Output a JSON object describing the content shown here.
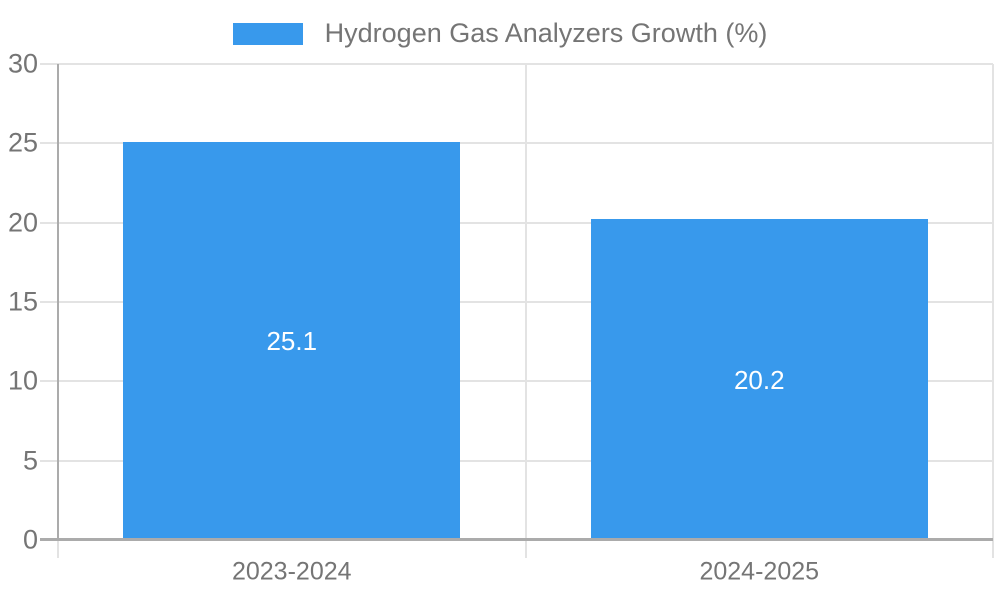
{
  "chart_data": {
    "type": "bar",
    "legend_label": "Hydrogen Gas Analyzers Growth (%)",
    "categories": [
      "2023-2024",
      "2024-2025"
    ],
    "series": [
      {
        "name": "Hydrogen Gas Analyzers Growth (%)",
        "color": "#3899ec",
        "values": [
          25.1,
          20.2
        ]
      }
    ],
    "data_labels": [
      "25.1",
      "20.2"
    ],
    "ylim": [
      0,
      30
    ],
    "yticks": [
      0,
      5,
      10,
      15,
      20,
      25,
      30
    ],
    "grid": true,
    "legend_position": "top"
  },
  "colors": {
    "bar": "#3899ec",
    "axis_text": "#757575",
    "grid_line": "#e3e3e3",
    "axis_line": "#ababab",
    "bar_label_text": "#ffffff",
    "background": "#ffffff"
  }
}
